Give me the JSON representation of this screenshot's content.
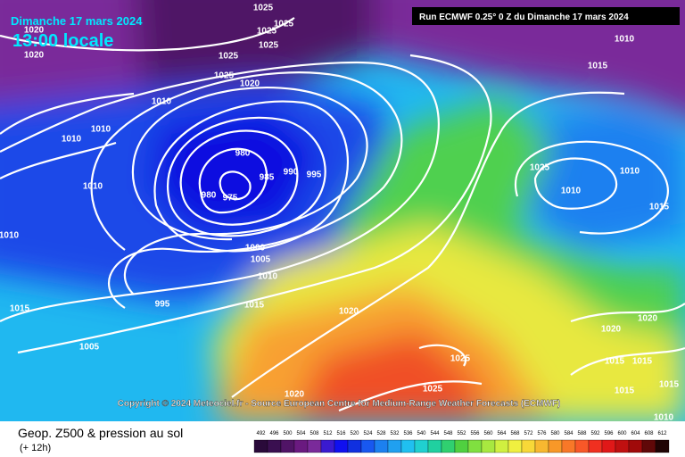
{
  "header": {
    "date": "Dimanche 17 mars 2024",
    "time": "13:00 locale",
    "run": "Run ECMWF 0.25° 0 Z du Dimanche 17 mars 2024"
  },
  "copyright": "Copyright © 2024 Meteociel.fr - Source European Centre for Medium-Range Weather Forecasts (ECMWF)",
  "isobar_labels": [
    "1025",
    "1025",
    "1025",
    "1025",
    "1025",
    "1025",
    "1020",
    "1020",
    "1010",
    "1010",
    "1010",
    "1010",
    "1010",
    "1015",
    "980",
    "985",
    "990",
    "995",
    "980",
    "975",
    "1000",
    "1005",
    "1010",
    "995",
    "1015",
    "1015",
    "1005",
    "1010",
    "1025",
    "1010",
    "1010",
    "1015",
    "1020",
    "1020",
    "1020",
    "1025",
    "1015",
    "1015",
    "1025",
    "1015",
    "1020",
    "1015",
    "1010",
    "1020"
  ],
  "footer": {
    "title": "Geop. Z500 & pression au sol",
    "lead": "(+ 12h)"
  },
  "scale": {
    "labels": [
      492,
      496,
      500,
      504,
      508,
      512,
      516,
      520,
      524,
      528,
      532,
      536,
      540,
      544,
      548,
      552,
      556,
      560,
      564,
      568,
      572,
      576,
      580,
      584,
      588,
      592,
      596,
      600,
      604,
      608,
      612
    ],
    "colors": [
      "#2a0a3a",
      "#3a0f50",
      "#501466",
      "#6a1a80",
      "#7a2a9a",
      "#3a1ad0",
      "#1010f0",
      "#1030e0",
      "#1858f0",
      "#1c80f0",
      "#20a0f0",
      "#20c0f0",
      "#20d0d0",
      "#20d0a0",
      "#30d070",
      "#50d040",
      "#80e040",
      "#a8e840",
      "#d0f040",
      "#f0f040",
      "#f8d838",
      "#f8b830",
      "#f89828",
      "#f87828",
      "#f85828",
      "#f03020",
      "#e01818",
      "#c01010",
      "#a00a0a",
      "#600808",
      "#200404"
    ]
  }
}
